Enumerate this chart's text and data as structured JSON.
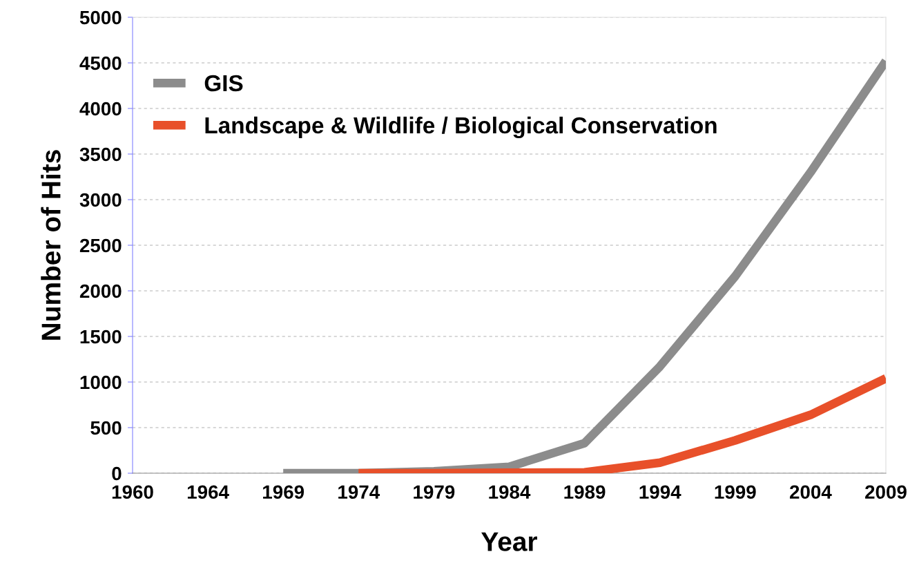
{
  "chart_data": {
    "type": "line",
    "xlabel": "Year",
    "ylabel": "Number of Hits",
    "categories": [
      "1960",
      "1964",
      "1969",
      "1974",
      "1979",
      "1984",
      "1989",
      "1994",
      "1999",
      "2004",
      "2009"
    ],
    "series": [
      {
        "name": "GIS",
        "color": "#8c8c8c",
        "values": [
          null,
          null,
          0,
          0,
          20,
          70,
          330,
          1170,
          2160,
          3300,
          4520
        ]
      },
      {
        "name": "Landscape & Wildlife / Biological Conservation",
        "color": "#e8502a",
        "values": [
          null,
          null,
          null,
          0,
          0,
          5,
          10,
          115,
          360,
          640,
          1040
        ]
      }
    ],
    "ylim": [
      0,
      5000
    ],
    "yticks": [
      0,
      500,
      1000,
      1500,
      2000,
      2500,
      3000,
      3500,
      4000,
      4500,
      5000
    ],
    "grid": "y",
    "legend": "top left",
    "marker": "none",
    "line_style": "solid"
  }
}
